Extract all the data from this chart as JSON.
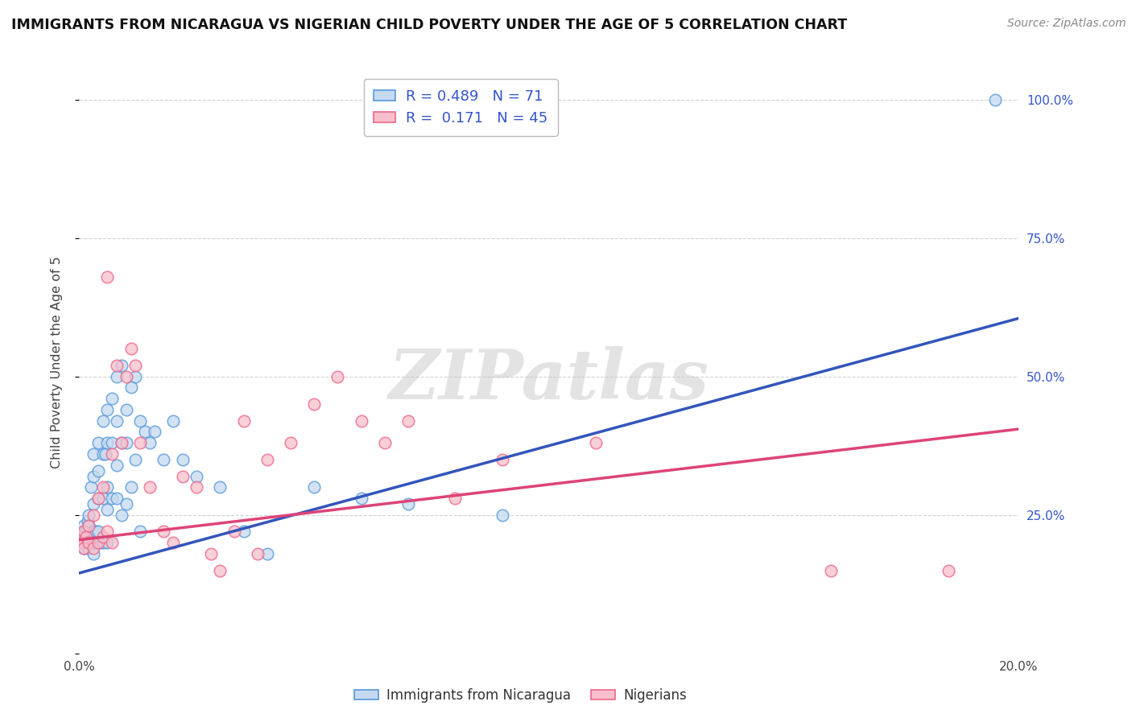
{
  "title": "IMMIGRANTS FROM NICARAGUA VS NIGERIAN CHILD POVERTY UNDER THE AGE OF 5 CORRELATION CHART",
  "source": "Source: ZipAtlas.com",
  "ylabel": "Child Poverty Under the Age of 5",
  "xlim": [
    0.0,
    0.2
  ],
  "ylim": [
    0.0,
    1.05
  ],
  "blue_R": "0.489",
  "blue_N": "71",
  "pink_R": "0.171",
  "pink_N": "45",
  "blue_fill_color": "#c5d9f0",
  "pink_fill_color": "#f7bfcc",
  "blue_edge_color": "#5599dd",
  "pink_edge_color": "#ee6688",
  "blue_line_color": "#3355bb",
  "pink_line_color": "#dd4477",
  "legend_color": "#3355cc",
  "watermark": "ZIPatlas",
  "legend_label_blue": "Immigrants from Nicaragua",
  "legend_label_pink": "Nigerians",
  "background_color": "#ffffff",
  "grid_color": "#cccccc",
  "blue_line_intercept": 0.145,
  "blue_line_slope": 2.3,
  "pink_line_intercept": 0.205,
  "pink_line_slope": 1.0,
  "blue_x": [
    0.0003,
    0.0005,
    0.0008,
    0.001,
    0.001,
    0.0012,
    0.0015,
    0.0015,
    0.0018,
    0.002,
    0.002,
    0.002,
    0.002,
    0.0022,
    0.0025,
    0.003,
    0.003,
    0.003,
    0.003,
    0.003,
    0.003,
    0.0035,
    0.004,
    0.004,
    0.004,
    0.004,
    0.0045,
    0.005,
    0.005,
    0.005,
    0.005,
    0.0055,
    0.006,
    0.006,
    0.006,
    0.006,
    0.006,
    0.007,
    0.007,
    0.007,
    0.008,
    0.008,
    0.008,
    0.008,
    0.009,
    0.009,
    0.009,
    0.01,
    0.01,
    0.01,
    0.011,
    0.011,
    0.012,
    0.012,
    0.013,
    0.013,
    0.014,
    0.015,
    0.016,
    0.018,
    0.02,
    0.022,
    0.025,
    0.03,
    0.035,
    0.04,
    0.05,
    0.06,
    0.07,
    0.09,
    0.195
  ],
  "blue_y": [
    0.21,
    0.2,
    0.22,
    0.19,
    0.23,
    0.21,
    0.2,
    0.22,
    0.24,
    0.21,
    0.19,
    0.23,
    0.25,
    0.2,
    0.3,
    0.32,
    0.27,
    0.22,
    0.2,
    0.18,
    0.36,
    0.22,
    0.38,
    0.33,
    0.28,
    0.22,
    0.2,
    0.42,
    0.36,
    0.28,
    0.2,
    0.36,
    0.44,
    0.38,
    0.3,
    0.26,
    0.2,
    0.46,
    0.38,
    0.28,
    0.5,
    0.42,
    0.34,
    0.28,
    0.52,
    0.38,
    0.25,
    0.44,
    0.38,
    0.27,
    0.48,
    0.3,
    0.5,
    0.35,
    0.42,
    0.22,
    0.4,
    0.38,
    0.4,
    0.35,
    0.42,
    0.35,
    0.32,
    0.3,
    0.22,
    0.18,
    0.3,
    0.28,
    0.27,
    0.25,
    1.0
  ],
  "pink_x": [
    0.0003,
    0.0005,
    0.001,
    0.001,
    0.0015,
    0.002,
    0.002,
    0.003,
    0.003,
    0.004,
    0.004,
    0.005,
    0.005,
    0.006,
    0.006,
    0.007,
    0.007,
    0.008,
    0.009,
    0.01,
    0.011,
    0.012,
    0.013,
    0.015,
    0.018,
    0.02,
    0.022,
    0.025,
    0.028,
    0.03,
    0.033,
    0.035,
    0.038,
    0.04,
    0.045,
    0.05,
    0.055,
    0.06,
    0.065,
    0.07,
    0.08,
    0.09,
    0.11,
    0.16,
    0.185
  ],
  "pink_y": [
    0.21,
    0.2,
    0.22,
    0.19,
    0.21,
    0.23,
    0.2,
    0.25,
    0.19,
    0.28,
    0.2,
    0.3,
    0.21,
    0.68,
    0.22,
    0.36,
    0.2,
    0.52,
    0.38,
    0.5,
    0.55,
    0.52,
    0.38,
    0.3,
    0.22,
    0.2,
    0.32,
    0.3,
    0.18,
    0.15,
    0.22,
    0.42,
    0.18,
    0.35,
    0.38,
    0.45,
    0.5,
    0.42,
    0.38,
    0.42,
    0.28,
    0.35,
    0.38,
    0.15,
    0.15
  ]
}
